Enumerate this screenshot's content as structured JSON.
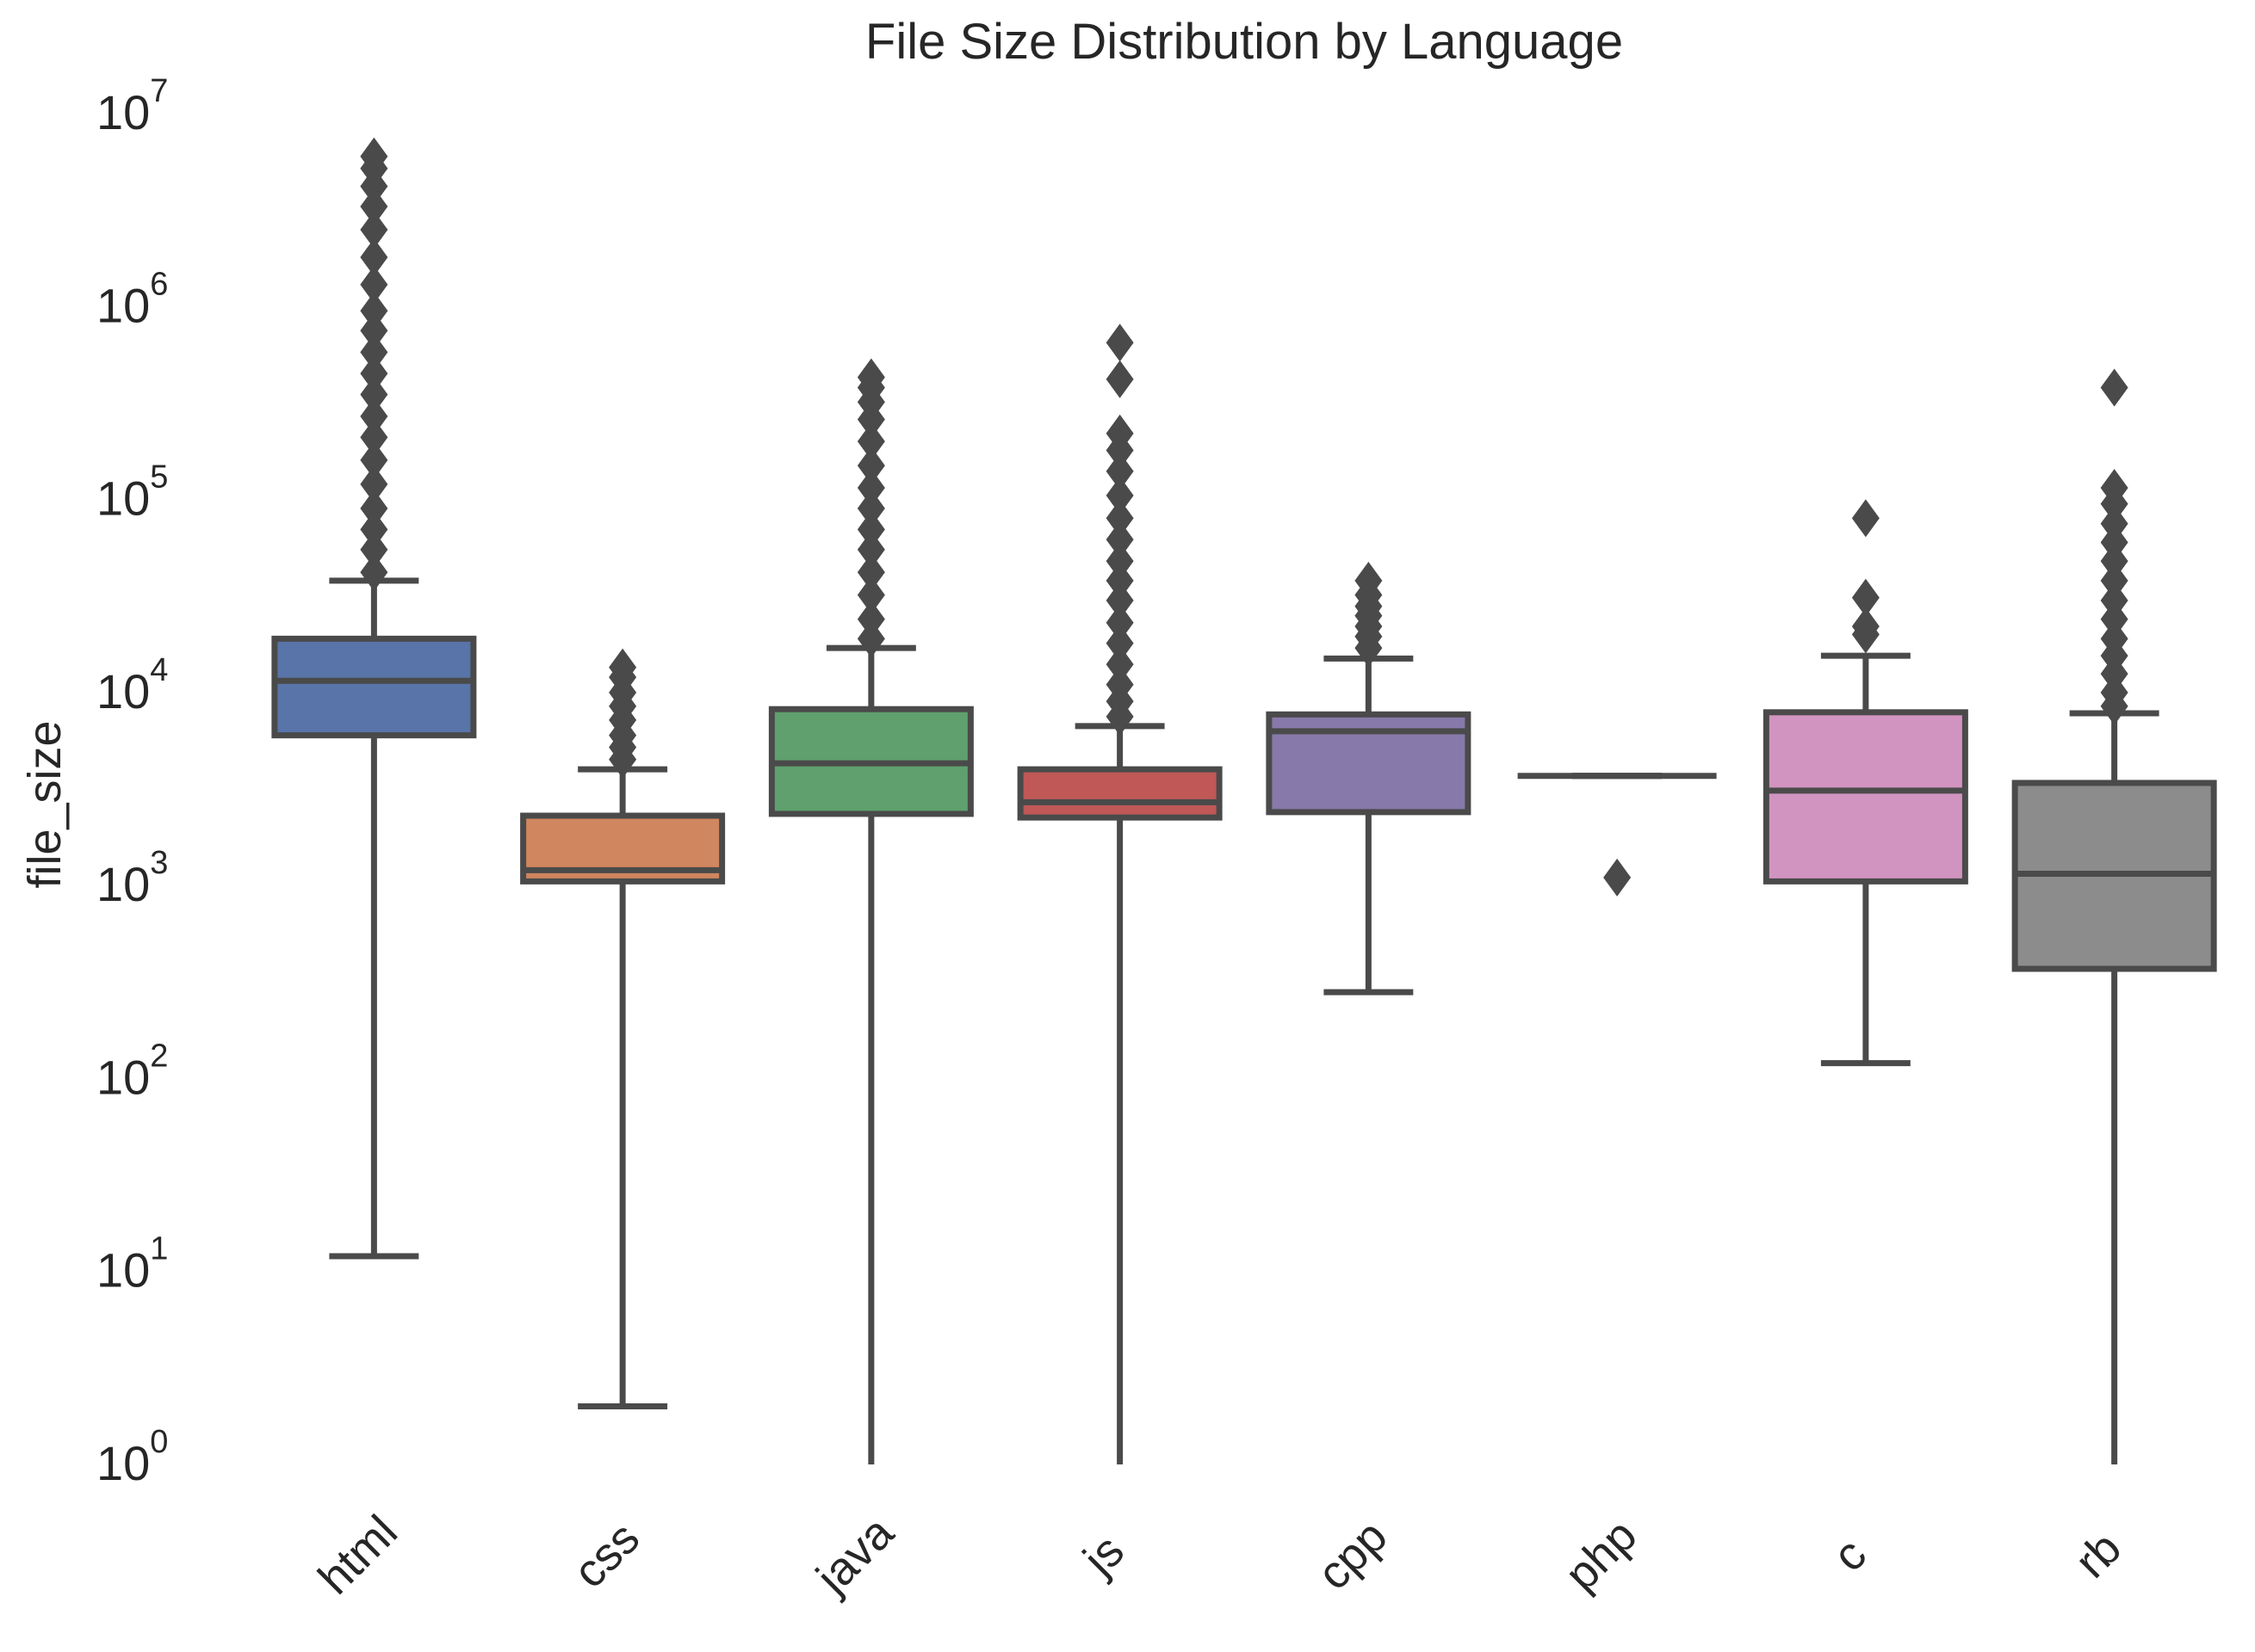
{
  "chart_data": {
    "type": "box",
    "title": "File Size Distribution by Language",
    "xlabel": "",
    "ylabel": "file_size",
    "yscale": "log",
    "ylim": [
      1,
      10000000
    ],
    "yticks": [
      {
        "value": 1,
        "base": "10",
        "exp": "0"
      },
      {
        "value": 10,
        "base": "10",
        "exp": "1"
      },
      {
        "value": 100,
        "base": "10",
        "exp": "2"
      },
      {
        "value": 1000,
        "base": "10",
        "exp": "3"
      },
      {
        "value": 10000,
        "base": "10",
        "exp": "4"
      },
      {
        "value": 100000,
        "base": "10",
        "exp": "5"
      },
      {
        "value": 1000000,
        "base": "10",
        "exp": "6"
      },
      {
        "value": 10000000,
        "base": "10",
        "exp": "7"
      }
    ],
    "grid": false,
    "categories": [
      "html",
      "css",
      "java",
      "js",
      "cpp",
      "php",
      "c",
      "rb"
    ],
    "boxes": [
      {
        "name": "html",
        "color": "#5874a8",
        "whisker_low": 12,
        "q1": 6000,
        "median": 11500,
        "q3": 19000,
        "whisker_high": 38000,
        "outliers": [
          42000,
          55000,
          70000,
          90000,
          120000,
          160000,
          210000,
          270000,
          350000,
          450000,
          580000,
          750000,
          950000,
          1300000,
          1800000,
          2500000,
          3300000,
          4200000,
          5200000,
          6000000
        ]
      },
      {
        "name": "css",
        "color": "#d0865e",
        "whisker_low": 2,
        "q1": 1050,
        "median": 1200,
        "q3": 2300,
        "whisker_high": 4000,
        "outliers": [
          4500,
          5200,
          6000,
          7200,
          8500,
          10000,
          12000,
          13500
        ]
      },
      {
        "name": "java",
        "color": "#5fa06e",
        "whisker_low": 1,
        "q1": 2350,
        "median": 4300,
        "q3": 8200,
        "whisker_high": 17000,
        "outliers": [
          19000,
          24000,
          32000,
          42000,
          55000,
          70000,
          90000,
          115000,
          150000,
          200000,
          260000,
          320000,
          380000,
          430000
        ]
      },
      {
        "name": "js",
        "color": "#c05857",
        "whisker_low": 1,
        "q1": 2250,
        "median": 2700,
        "q3": 4000,
        "whisker_high": 6700,
        "outliers": [
          7500,
          9000,
          11000,
          14000,
          18000,
          23000,
          30000,
          38000,
          48000,
          62000,
          80000,
          105000,
          140000,
          180000,
          220000,
          420000,
          650000
        ]
      },
      {
        "name": "cpp",
        "color": "#8779a9",
        "whisker_low": 280,
        "q1": 2400,
        "median": 6300,
        "q3": 7700,
        "whisker_high": 15000,
        "outliers": [
          17000,
          19500,
          22000,
          25000,
          28000,
          32000,
          38000
        ]
      },
      {
        "name": "php",
        "color": "#8b6b5c",
        "whisker_low": 3700,
        "q1": 3700,
        "median": 3700,
        "q3": 3700,
        "whisker_high": 3700,
        "outliers": [
          1100
        ]
      },
      {
        "name": "c",
        "color": "#d194c0",
        "whisker_low": 120,
        "q1": 1050,
        "median": 3100,
        "q3": 7900,
        "whisker_high": 15500,
        "outliers": [
          20000,
          22000,
          31000,
          80000
        ]
      },
      {
        "name": "rb",
        "color": "#8c8c8c",
        "whisker_low": 1,
        "q1": 370,
        "median": 1150,
        "q3": 3400,
        "whisker_high": 7800,
        "outliers": [
          8500,
          10000,
          12500,
          15500,
          19000,
          24000,
          30000,
          38000,
          48000,
          60000,
          75000,
          95000,
          115000,
          380000
        ]
      }
    ]
  }
}
